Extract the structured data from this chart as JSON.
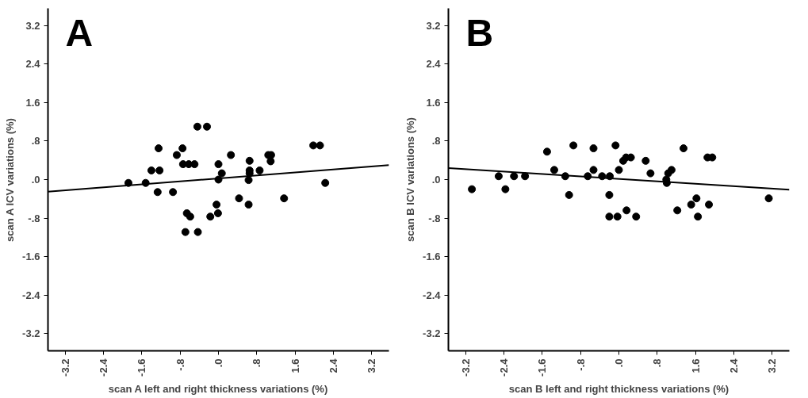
{
  "chart_data": [
    {
      "type": "scatter",
      "title": "A",
      "xlabel": "scan A left and right thickness variations (%)",
      "ylabel": "scan A ICV variations (%)",
      "xlim": [
        -3.56,
        3.56
      ],
      "ylim": [
        -3.56,
        3.56
      ],
      "xticks": [
        -3.2,
        -2.4,
        -1.6,
        {
          "value": -0.8,
          "label": "-.8"
        },
        {
          "value": 0,
          "label": ".0"
        },
        {
          "value": 0.8,
          "label": ".8"
        },
        1.6,
        2.4,
        3.2
      ],
      "yticks": [
        -3.2,
        -2.4,
        -1.6,
        {
          "value": -0.8,
          "label": "-.8"
        },
        {
          "value": 0,
          "label": ".0"
        },
        {
          "value": 0.8,
          "label": ".8"
        },
        1.6,
        2.4,
        3.2
      ],
      "grid": false,
      "series": [
        {
          "marker": "circle",
          "color": "#000000",
          "x": [
            -1.88,
            -1.52,
            -1.4,
            -1.23,
            -1.25,
            -1.27,
            -0.95,
            -0.87,
            -0.75,
            -0.74,
            -0.62,
            -0.5,
            -0.44,
            -0.24,
            -0.66,
            -0.59,
            -0.69,
            -0.43,
            -0.17,
            -0.01,
            -0.04,
            0.0,
            0.07,
            0.0,
            0.26,
            0.43,
            0.63,
            0.65,
            0.65,
            0.63,
            0.65,
            0.86,
            1.04,
            1.1,
            1.09,
            1.37,
            1.98,
            2.12,
            2.23
          ],
          "values": [
            -0.07,
            -0.07,
            0.19,
            0.19,
            0.65,
            -0.26,
            -0.26,
            0.51,
            0.65,
            0.32,
            0.32,
            0.32,
            1.1,
            1.1,
            -0.7,
            -0.77,
            -1.09,
            -1.09,
            -0.77,
            -0.7,
            -0.52,
            0.32,
            0.13,
            0.0,
            0.51,
            -0.39,
            -0.52,
            0.39,
            0.19,
            -0.01,
            0.13,
            0.19,
            0.51,
            0.51,
            0.38,
            -0.39,
            0.71,
            0.71,
            -0.07
          ]
        },
        {
          "type": "line",
          "color": "#000000",
          "x": [
            -3.56,
            3.56
          ],
          "values": [
            -0.25,
            0.3
          ]
        }
      ]
    },
    {
      "type": "scatter",
      "title": "B",
      "xlabel": "scan B left and right thickness variations (%)",
      "ylabel": "scan B ICV variations (%)",
      "xlim": [
        -3.56,
        3.56
      ],
      "ylim": [
        -3.56,
        3.56
      ],
      "xticks": [
        -3.2,
        -2.4,
        -1.6,
        {
          "value": -0.8,
          "label": "-.8"
        },
        {
          "value": 0,
          "label": ".0"
        },
        {
          "value": 0.8,
          "label": ".8"
        },
        1.6,
        2.4,
        3.2
      ],
      "yticks": [
        -3.2,
        -2.4,
        -1.6,
        {
          "value": -0.8,
          "label": "-.8"
        },
        {
          "value": 0,
          "label": ".0"
        },
        {
          "value": 0.8,
          "label": ".8"
        },
        1.6,
        2.4,
        3.2
      ],
      "grid": false,
      "series": [
        {
          "marker": "circle",
          "color": "#000000",
          "x": [
            -3.07,
            -2.51,
            -2.37,
            -2.19,
            -1.96,
            -1.5,
            -1.35,
            -1.12,
            -1.04,
            -0.95,
            -0.65,
            -0.53,
            -0.53,
            -0.35,
            -0.19,
            -0.2,
            -0.2,
            -0.03,
            -0.07,
            0.0,
            0.09,
            0.15,
            0.25,
            0.16,
            0.36,
            0.56,
            0.66,
            1.0,
            0.99,
            1.03,
            1.1,
            1.22,
            1.35,
            1.51,
            1.62,
            1.65,
            1.85,
            1.95,
            1.88,
            3.13
          ],
          "values": [
            -0.2,
            0.07,
            -0.2,
            0.07,
            0.07,
            0.58,
            0.2,
            0.07,
            -0.32,
            0.71,
            0.07,
            0.65,
            0.2,
            0.07,
            0.07,
            -0.32,
            -0.77,
            -0.77,
            0.71,
            0.2,
            0.39,
            0.46,
            0.46,
            -0.64,
            -0.77,
            0.39,
            0.13,
            -0.07,
            0.0,
            0.13,
            0.2,
            -0.64,
            0.65,
            -0.52,
            -0.39,
            -0.77,
            0.46,
            0.46,
            -0.52,
            -0.39
          ]
        },
        {
          "type": "line",
          "color": "#000000",
          "x": [
            -3.56,
            3.56
          ],
          "values": [
            0.24,
            -0.21
          ]
        }
      ]
    }
  ]
}
